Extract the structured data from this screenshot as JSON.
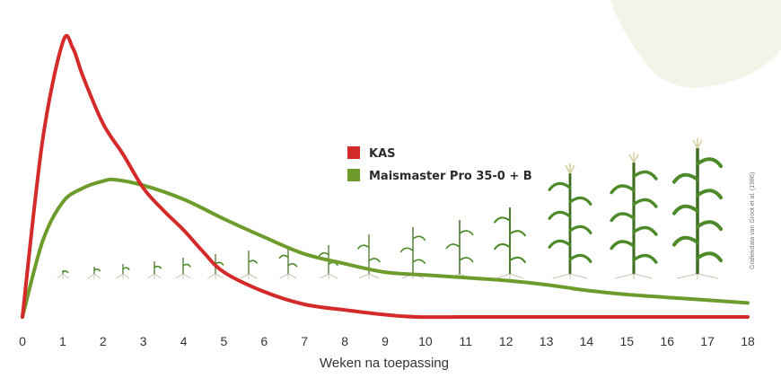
{
  "chart_data": {
    "type": "line",
    "xlabel": "Weken na toepassing",
    "ylabel": "",
    "x_ticks": [
      0,
      1,
      2,
      3,
      4,
      5,
      6,
      7,
      8,
      9,
      10,
      11,
      12,
      13,
      14,
      15,
      16,
      17,
      18
    ],
    "xlim": [
      0,
      18
    ],
    "ylim": [
      0,
      100
    ],
    "grid": false,
    "legend_position": "center",
    "series": [
      {
        "name": "KAS",
        "color": "#d42a2a",
        "x": [
          0,
          0.5,
          1,
          1.25,
          1.5,
          2,
          2.5,
          3,
          3.5,
          4,
          4.5,
          5,
          6,
          7,
          8,
          9,
          9.8,
          11,
          12,
          13,
          14,
          15,
          16,
          17,
          18
        ],
        "y": [
          0,
          63,
          98,
          96,
          86,
          69,
          58,
          46,
          38,
          31,
          23,
          16,
          9,
          4.5,
          2.5,
          0.8,
          0,
          0,
          0,
          0,
          0,
          0,
          0,
          0,
          0
        ]
      },
      {
        "name": "Maismaster Pro 35-0 + B",
        "color": "#6e9c2c",
        "x": [
          0,
          0.5,
          1,
          1.5,
          2,
          2.3,
          3,
          4,
          5,
          6,
          7,
          8,
          9,
          10,
          11,
          12,
          13,
          14,
          15,
          16,
          17,
          18
        ],
        "y": [
          0,
          27,
          41,
          46,
          48.5,
          49,
          47,
          42,
          35,
          28.5,
          22.5,
          19,
          16,
          15,
          14,
          13,
          11.5,
          9.5,
          8,
          7,
          6,
          5
        ]
      }
    ],
    "source": "Grafiekdata van Groot et al. (1986)"
  }
}
